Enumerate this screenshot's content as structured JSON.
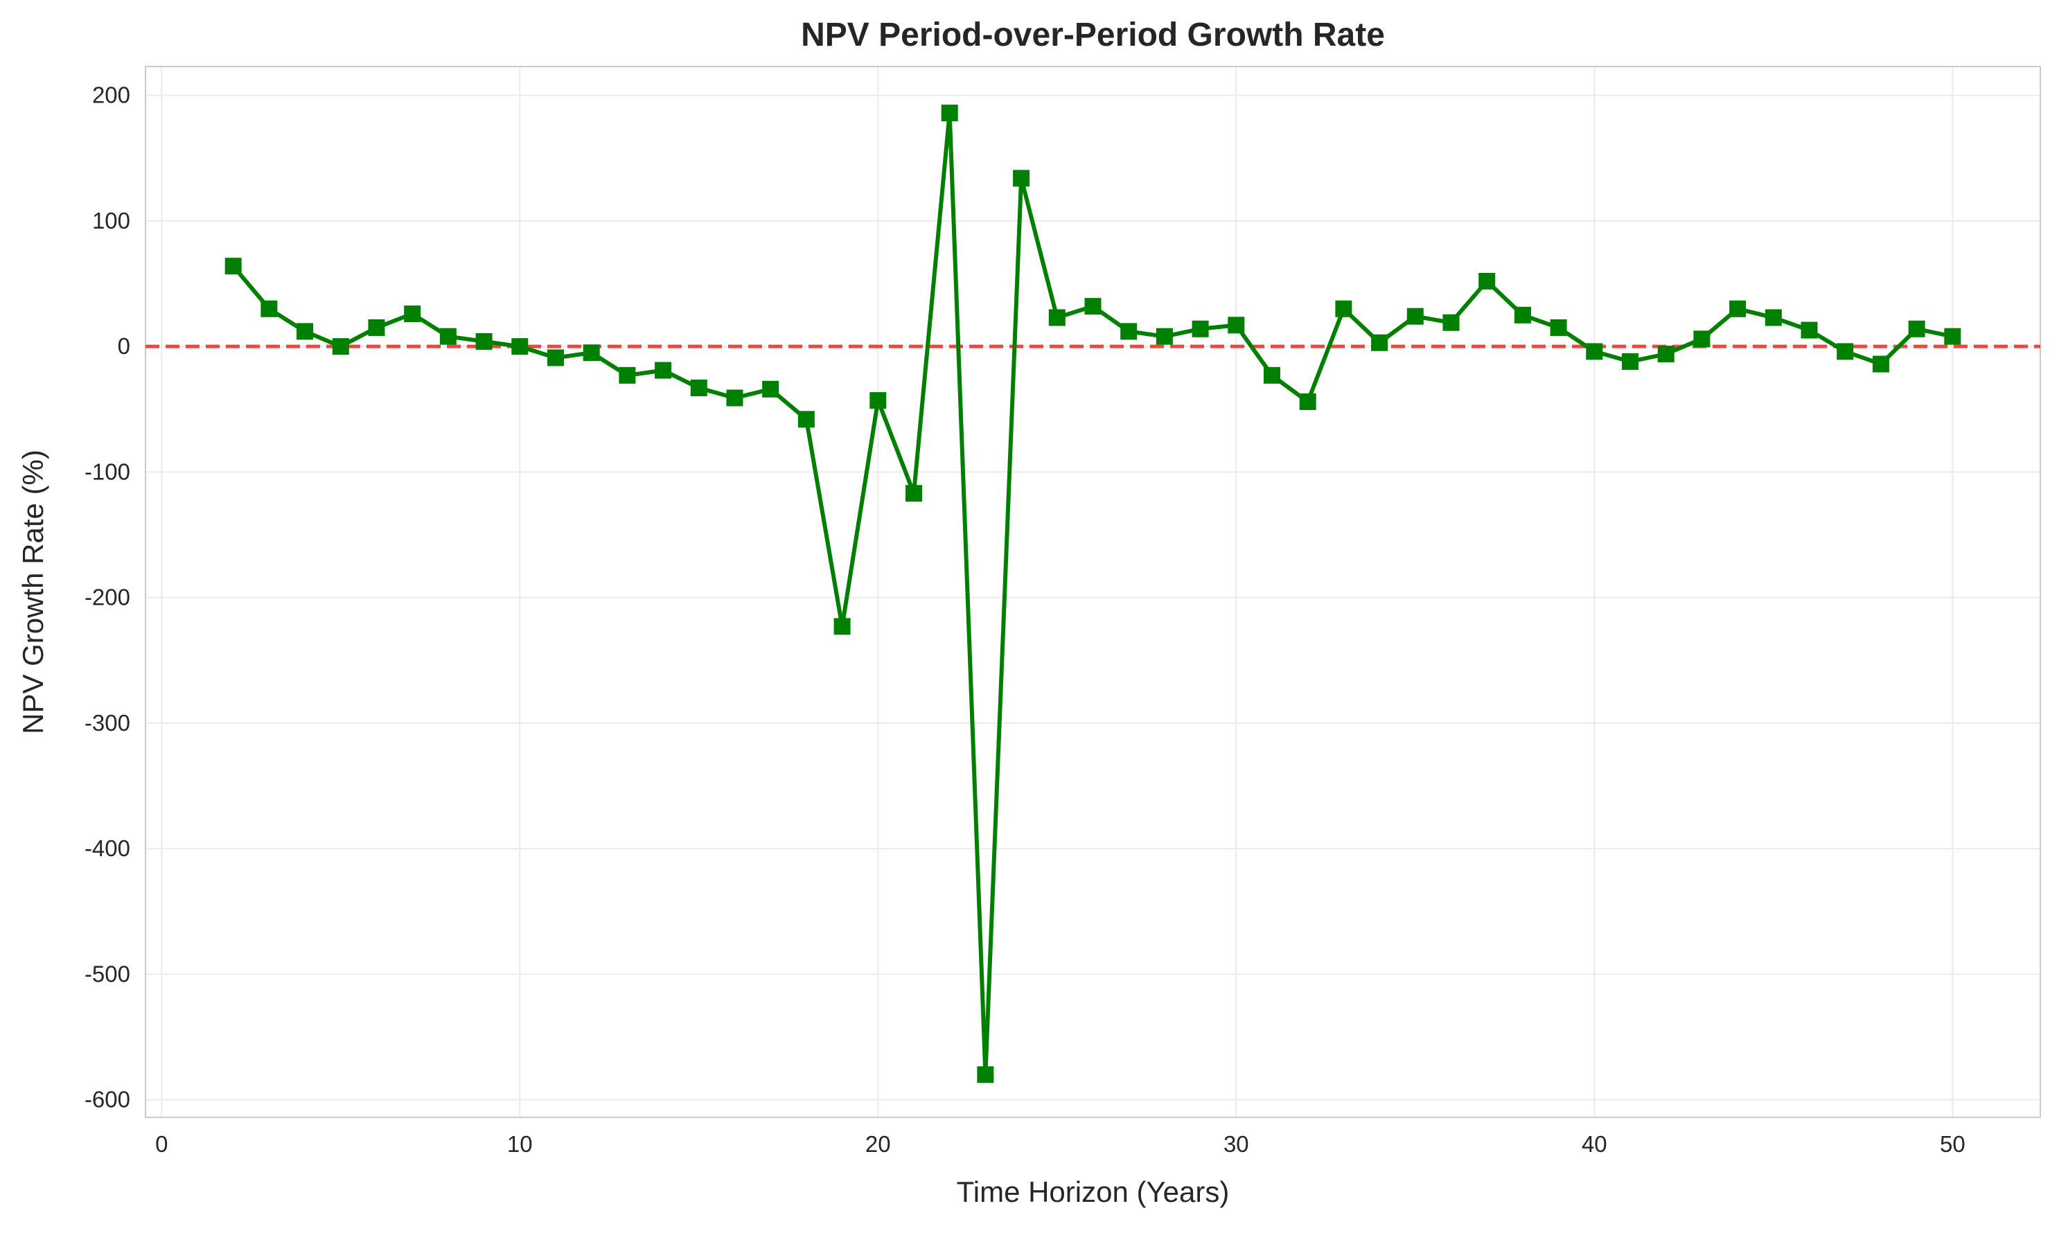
{
  "chart_data": {
    "type": "line",
    "title": "NPV Period-over-Period Growth Rate",
    "xlabel": "Time Horizon (Years)",
    "ylabel": "NPV Growth Rate (%)",
    "xlim": [
      -0.45,
      52.45
    ],
    "ylim": [
      -614,
      223
    ],
    "xticks": [
      0,
      10,
      20,
      30,
      40,
      50
    ],
    "yticks": [
      200,
      100,
      0,
      -100,
      -200,
      -300,
      -400,
      -500,
      -600
    ],
    "grid": true,
    "reference_line": {
      "y": 0,
      "color": "#e8403a",
      "style": "dashed"
    },
    "series": [
      {
        "color": "#008000",
        "marker": "square",
        "x": [
          2,
          3,
          4,
          5,
          6,
          7,
          8,
          9,
          10,
          11,
          12,
          13,
          14,
          15,
          16,
          17,
          18,
          19,
          20,
          21,
          22,
          23,
          24,
          25,
          26,
          27,
          28,
          29,
          30,
          31,
          32,
          33,
          34,
          35,
          36,
          37,
          38,
          39,
          40,
          41,
          42,
          43,
          44,
          45,
          46,
          47,
          48,
          49,
          50
        ],
        "y": [
          64,
          30,
          12,
          0,
          15,
          26,
          8,
          4,
          0,
          -9,
          -5,
          -23,
          -19,
          -33,
          -41,
          -34,
          -58,
          -223,
          -43,
          -117,
          186,
          -580,
          134,
          23,
          32,
          12,
          8,
          14,
          17,
          -23,
          -44,
          30,
          3,
          24,
          19,
          52,
          25,
          15,
          -4,
          -12,
          -6,
          6,
          30,
          23,
          13,
          -4,
          -14,
          14,
          8
        ]
      }
    ]
  }
}
